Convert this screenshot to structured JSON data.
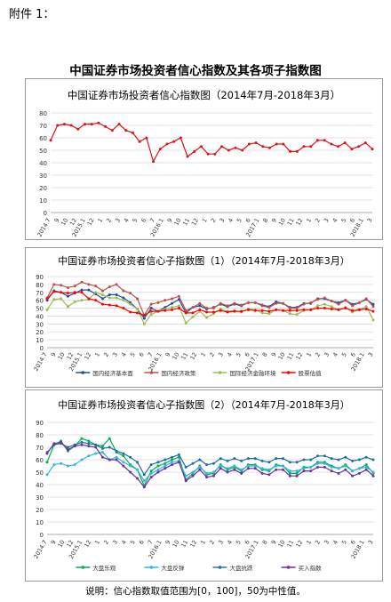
{
  "header": {
    "attachment": "附件 1：",
    "main_title": "中国证券市场投资者信心指数及其各项子指数图"
  },
  "footnote": "说明：信心指数取值范围为[0，100]，50为中性值。",
  "x_labels": [
    "2014.7",
    "9",
    "10",
    "12",
    "2015.1",
    "",
    "",
    "",
    "",
    "",
    "",
    "",
    "",
    "2016.1",
    "",
    "",
    "",
    "",
    "",
    "",
    "",
    "",
    "",
    "",
    "2017.1",
    "",
    "",
    "",
    "",
    "",
    "",
    "",
    "",
    "",
    "",
    "",
    "2018.1",
    "3"
  ],
  "chart_data": [
    {
      "type": "line",
      "title": "中国证券市场投资者信心指数图（2014年7月-2018年3月）",
      "ylim": [
        0,
        80
      ],
      "yticks": [
        0,
        10,
        20,
        30,
        40,
        50,
        60,
        70,
        80
      ],
      "grid": true,
      "series": [
        {
          "name": "",
          "color": "#d9141a",
          "values": [
            58,
            70,
            71,
            70,
            67,
            71,
            71,
            72,
            69,
            66,
            71,
            66,
            64,
            57,
            60,
            41,
            51,
            55,
            57,
            60,
            45,
            49,
            53,
            47,
            47,
            53,
            50,
            52,
            50,
            55,
            56,
            53,
            52,
            55,
            55,
            49,
            49,
            53,
            53,
            58,
            58,
            55,
            53,
            56,
            51,
            53,
            56,
            51
          ]
        }
      ]
    },
    {
      "type": "line",
      "title": "中国证券市场投资者信心子指数图（1）（2014年7月-2018年3月）",
      "ylim": [
        0,
        90
      ],
      "yticks": [
        0,
        10,
        20,
        30,
        40,
        50,
        60,
        70,
        80,
        90
      ],
      "grid": true,
      "legend_position": "bottom",
      "series": [
        {
          "name": "国内经济基本面",
          "color": "#1f4e9a",
          "values": [
            60,
            72,
            70,
            65,
            69,
            73,
            73,
            68,
            62,
            67,
            67,
            63,
            57,
            49,
            37,
            50,
            46,
            51,
            56,
            61,
            44,
            51,
            53,
            49,
            51,
            55,
            52,
            55,
            53,
            57,
            57,
            54,
            52,
            58,
            56,
            51,
            51,
            56,
            56,
            62,
            62,
            59,
            57,
            60,
            55,
            57,
            61,
            55
          ]
        },
        {
          "name": "国内经济政策",
          "color": "#c0504d",
          "values": [
            63,
            80,
            79,
            76,
            78,
            83,
            80,
            78,
            72,
            77,
            80,
            72,
            69,
            62,
            41,
            55,
            57,
            60,
            62,
            65,
            47,
            51,
            56,
            50,
            50,
            56,
            53,
            56,
            54,
            57,
            57,
            53,
            51,
            56,
            56,
            50,
            50,
            55,
            57,
            61,
            63,
            59,
            55,
            60,
            53,
            57,
            62,
            52
          ]
        },
        {
          "name": "国际经济金融环境",
          "color": "#9bbb59",
          "values": [
            48,
            61,
            62,
            52,
            58,
            60,
            61,
            70,
            67,
            63,
            63,
            60,
            55,
            49,
            30,
            42,
            46,
            49,
            51,
            53,
            31,
            39,
            46,
            38,
            43,
            49,
            46,
            47,
            45,
            49,
            48,
            44,
            43,
            48,
            47,
            43,
            42,
            47,
            48,
            53,
            55,
            52,
            48,
            51,
            45,
            48,
            52,
            35
          ]
        },
        {
          "name": "股票估值",
          "color": "#ff0000",
          "values": [
            62,
            71,
            70,
            69,
            70,
            70,
            62,
            60,
            55,
            54,
            53,
            50,
            45,
            44,
            41,
            46,
            46,
            47,
            48,
            50,
            44,
            44,
            48,
            45,
            45,
            47,
            45,
            46,
            46,
            48,
            47,
            47,
            46,
            48,
            47,
            47,
            47,
            48,
            48,
            50,
            50,
            49,
            48,
            50,
            47,
            48,
            49,
            46
          ]
        }
      ]
    },
    {
      "type": "line",
      "title": "中国证券市场投资者信心子指数图（2）（2014年7月-2018年3月）",
      "ylim": [
        0,
        90
      ],
      "yticks": [
        0,
        10,
        20,
        30,
        40,
        50,
        60,
        70,
        80,
        90
      ],
      "grid": true,
      "legend_position": "bottom",
      "series": [
        {
          "name": "大盘乐观",
          "color": "#00b050",
          "values": [
            58,
            72,
            75,
            67,
            71,
            77,
            75,
            72,
            71,
            77,
            66,
            63,
            56,
            52,
            39,
            51,
            55,
            57,
            60,
            62,
            44,
            49,
            55,
            48,
            49,
            56,
            52,
            54,
            51,
            56,
            56,
            52,
            51,
            56,
            55,
            49,
            49,
            54,
            54,
            58,
            58,
            55,
            53,
            56,
            51,
            53,
            56,
            49
          ]
        },
        {
          "name": "大盘反弹",
          "color": "#33b5e5",
          "values": [
            48,
            56,
            57,
            55,
            56,
            60,
            63,
            65,
            66,
            60,
            62,
            58,
            55,
            52,
            43,
            49,
            52,
            55,
            58,
            59,
            47,
            50,
            54,
            49,
            50,
            55,
            53,
            55,
            52,
            55,
            55,
            53,
            52,
            55,
            55,
            51,
            51,
            53,
            54,
            57,
            57,
            54,
            53,
            55,
            51,
            53,
            54,
            50
          ]
        },
        {
          "name": "大盘抗跌",
          "color": "#1f6fa0",
          "values": [
            66,
            72,
            73,
            70,
            72,
            74,
            73,
            72,
            69,
            70,
            67,
            65,
            62,
            58,
            48,
            56,
            58,
            60,
            62,
            64,
            54,
            57,
            60,
            56,
            57,
            61,
            59,
            61,
            59,
            61,
            61,
            59,
            58,
            61,
            61,
            58,
            58,
            60,
            60,
            63,
            63,
            61,
            60,
            62,
            59,
            60,
            62,
            60
          ]
        },
        {
          "name": "买入指数",
          "color": "#7030a0",
          "values": [
            65,
            73,
            74,
            68,
            71,
            72,
            71,
            70,
            62,
            60,
            60,
            55,
            50,
            45,
            38,
            46,
            50,
            53,
            56,
            58,
            43,
            47,
            52,
            46,
            47,
            53,
            50,
            52,
            49,
            53,
            53,
            49,
            48,
            52,
            52,
            47,
            47,
            51,
            51,
            54,
            54,
            51,
            49,
            52,
            47,
            49,
            52,
            47
          ]
        }
      ]
    }
  ]
}
